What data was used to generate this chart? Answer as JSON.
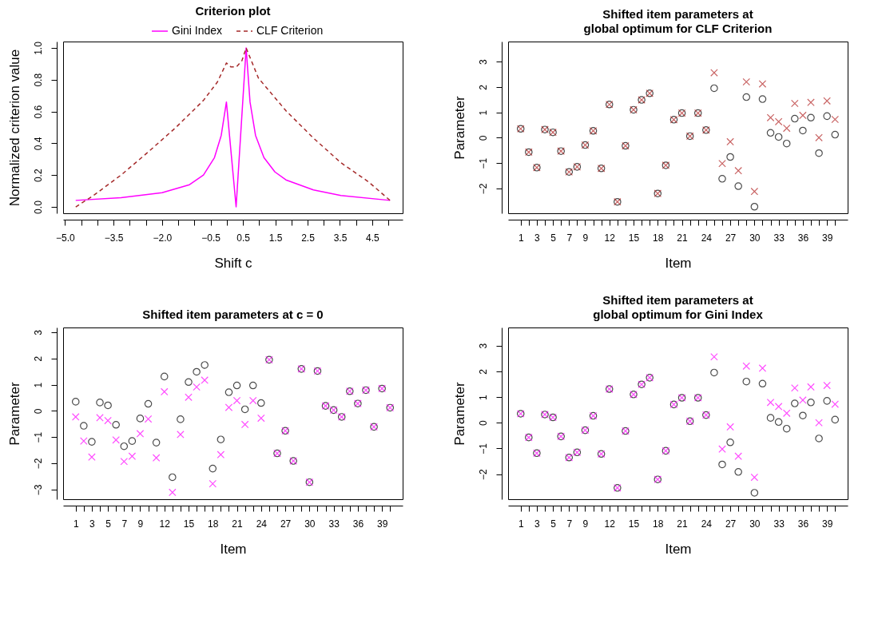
{
  "chart_data": [
    {
      "type": "line",
      "title": "Criterion plot",
      "xlabel": "Shift c",
      "ylabel": "Normalized criterion value",
      "legend": "top",
      "xlim": [
        -5.06,
        5.44
      ],
      "ylim": [
        -0.04,
        1.04
      ],
      "xticks": [
        {
          "value": -5,
          "label": "−5.0"
        },
        {
          "value": -4.5,
          "label": null
        },
        {
          "value": -4,
          "label": null
        },
        {
          "value": -3.5,
          "label": "−3.5"
        },
        {
          "value": -3,
          "label": null
        },
        {
          "value": -2.5,
          "label": null
        },
        {
          "value": -2,
          "label": "−2.0"
        },
        {
          "value": -1.5,
          "label": null
        },
        {
          "value": -1,
          "label": null
        },
        {
          "value": -0.5,
          "label": "−0.5"
        },
        {
          "value": 0,
          "label": null
        },
        {
          "value": 0.5,
          "label": "0.5"
        },
        {
          "value": 1,
          "label": null
        },
        {
          "value": 1.5,
          "label": "1.5"
        },
        {
          "value": 2,
          "label": null
        },
        {
          "value": 2.5,
          "label": "2.5"
        },
        {
          "value": 3,
          "label": null
        },
        {
          "value": 3.5,
          "label": "3.5"
        },
        {
          "value": 4,
          "label": null
        },
        {
          "value": 4.5,
          "label": "4.5"
        },
        {
          "value": 5,
          "label": null
        }
      ],
      "yticks": [
        {
          "value": 0,
          "label": "0.0"
        },
        {
          "value": 0.2,
          "label": "0.2"
        },
        {
          "value": 0.4,
          "label": "0.4"
        },
        {
          "value": 0.6,
          "label": "0.6"
        },
        {
          "value": 0.8,
          "label": "0.8"
        },
        {
          "value": 1,
          "label": "1.0"
        }
      ],
      "series": [
        {
          "name": "Gini Index",
          "color": "#ff00ff",
          "line_style": "solid",
          "x": [
            -4.67,
            -3.27,
            -2.0,
            -1.15,
            -0.72,
            -0.38,
            -0.17,
            -0.01,
            0.29,
            0.6,
            0.72,
            0.89,
            1.15,
            1.49,
            1.83,
            2.68,
            3.53,
            5.05
          ],
          "values": [
            0.041,
            0.058,
            0.089,
            0.14,
            0.2,
            0.31,
            0.45,
            0.66,
            0,
            1.0,
            0.66,
            0.45,
            0.31,
            0.22,
            0.17,
            0.107,
            0.072,
            0.041
          ]
        },
        {
          "name": "CLF Criterion",
          "color": "#a52a2a",
          "line_style": "dashed",
          "x": [
            -4.67,
            -4.12,
            -3.27,
            -2.42,
            -1.57,
            -0.72,
            -0.29,
            -0.01,
            0.13,
            0.3,
            0.47,
            0.6,
            0.98,
            1.83,
            2.68,
            3.53,
            4.38,
            5.05
          ],
          "values": [
            0,
            0.072,
            0.2,
            0.347,
            0.5,
            0.67,
            0.785,
            0.905,
            0.88,
            0.88,
            0.92,
            1.0,
            0.81,
            0.605,
            0.433,
            0.278,
            0.158,
            0.041
          ]
        }
      ]
    },
    {
      "type": "scatter",
      "title": "Shifted item parameters at\nglobal optimum for CLF Criterion",
      "xlabel": "Item",
      "ylabel": "Parameter",
      "x": [
        1,
        2,
        3,
        4,
        5,
        6,
        7,
        8,
        9,
        10,
        11,
        12,
        13,
        14,
        15,
        16,
        17,
        18,
        19,
        20,
        21,
        22,
        23,
        24,
        25,
        26,
        27,
        28,
        29,
        30,
        31,
        32,
        33,
        34,
        35,
        36,
        37,
        38,
        39,
        40
      ],
      "xlim": [
        -0.56,
        41.56
      ],
      "ylim": [
        -2.98,
        3.79
      ],
      "xticks": [
        1,
        {
          "value": 2,
          "label": null
        },
        3,
        {
          "value": 4,
          "label": null
        },
        5,
        {
          "value": 6,
          "label": null
        },
        7,
        {
          "value": 8,
          "label": null
        },
        9,
        {
          "value": 10,
          "label": null
        },
        {
          "value": 11,
          "label": null
        },
        12,
        {
          "value": 13,
          "label": null
        },
        {
          "value": 14,
          "label": null
        },
        15,
        {
          "value": 16,
          "label": null
        },
        {
          "value": 17,
          "label": null
        },
        18,
        {
          "value": 19,
          "label": null
        },
        {
          "value": 20,
          "label": null
        },
        21,
        {
          "value": 22,
          "label": null
        },
        {
          "value": 23,
          "label": null
        },
        24,
        {
          "value": 25,
          "label": null
        },
        {
          "value": 26,
          "label": null
        },
        27,
        {
          "value": 28,
          "label": null
        },
        {
          "value": 29,
          "label": null
        },
        30,
        {
          "value": 31,
          "label": null
        },
        {
          "value": 32,
          "label": null
        },
        33,
        {
          "value": 34,
          "label": null
        },
        {
          "value": 35,
          "label": null
        },
        36,
        {
          "value": 37,
          "label": null
        },
        {
          "value": 38,
          "label": null
        },
        39,
        {
          "value": 40,
          "label": null
        }
      ],
      "yticks": [
        -2,
        -1,
        0,
        1,
        2,
        3
      ],
      "series": [
        {
          "color": "#000000",
          "marker": "circle",
          "values": [
            0.35,
            -0.57,
            -1.18,
            0.32,
            0.21,
            -0.53,
            -1.35,
            -1.15,
            -0.29,
            0.27,
            -1.21,
            1.31,
            -2.53,
            -0.32,
            1.1,
            1.49,
            1.75,
            -2.2,
            -1.09,
            0.71,
            0.97,
            0.06,
            0.97,
            0.3,
            1.95,
            -1.62,
            -0.76,
            -1.91,
            1.6,
            -2.72,
            1.52,
            0.19,
            0.03,
            -0.23,
            0.75,
            0.28,
            0.79,
            -0.61,
            0.85,
            0.12
          ]
        },
        {
          "color": "#b22222",
          "marker": "cross",
          "values": [
            0.35,
            -0.57,
            -1.18,
            0.32,
            0.21,
            -0.53,
            -1.35,
            -1.15,
            -0.29,
            0.27,
            -1.21,
            1.31,
            -2.53,
            -0.32,
            1.1,
            1.49,
            1.75,
            -2.2,
            -1.09,
            0.71,
            0.97,
            0.06,
            0.97,
            0.3,
            2.56,
            -1.02,
            -0.16,
            -1.3,
            2.2,
            -2.12,
            2.12,
            0.79,
            0.63,
            0.37,
            1.35,
            0.88,
            1.39,
            0.0,
            1.45,
            0.72
          ]
        }
      ]
    },
    {
      "type": "scatter",
      "title": "Shifted item parameters at c = 0",
      "xlabel": "Item",
      "ylabel": "Parameter",
      "x": [
        1,
        2,
        3,
        4,
        5,
        6,
        7,
        8,
        9,
        10,
        11,
        12,
        13,
        14,
        15,
        16,
        17,
        18,
        19,
        20,
        21,
        22,
        23,
        24,
        25,
        26,
        27,
        28,
        29,
        30,
        31,
        32,
        33,
        34,
        35,
        36,
        37,
        38,
        39,
        40
      ],
      "xlim": [
        -0.56,
        41.56
      ],
      "ylim": [
        -3.37,
        3.18
      ],
      "xticks": [
        1,
        {
          "value": 2,
          "label": null
        },
        3,
        {
          "value": 4,
          "label": null
        },
        5,
        {
          "value": 6,
          "label": null
        },
        7,
        {
          "value": 8,
          "label": null
        },
        9,
        {
          "value": 10,
          "label": null
        },
        {
          "value": 11,
          "label": null
        },
        12,
        {
          "value": 13,
          "label": null
        },
        {
          "value": 14,
          "label": null
        },
        15,
        {
          "value": 16,
          "label": null
        },
        {
          "value": 17,
          "label": null
        },
        18,
        {
          "value": 19,
          "label": null
        },
        {
          "value": 20,
          "label": null
        },
        21,
        {
          "value": 22,
          "label": null
        },
        {
          "value": 23,
          "label": null
        },
        24,
        {
          "value": 25,
          "label": null
        },
        {
          "value": 26,
          "label": null
        },
        27,
        {
          "value": 28,
          "label": null
        },
        {
          "value": 29,
          "label": null
        },
        30,
        {
          "value": 31,
          "label": null
        },
        {
          "value": 32,
          "label": null
        },
        33,
        {
          "value": 34,
          "label": null
        },
        {
          "value": 35,
          "label": null
        },
        36,
        {
          "value": 37,
          "label": null
        },
        {
          "value": 38,
          "label": null
        },
        39,
        {
          "value": 40,
          "label": null
        }
      ],
      "yticks": [
        -3,
        -2,
        -1,
        0,
        1,
        2,
        3
      ],
      "series": [
        {
          "color": "#000000",
          "marker": "circle",
          "values": [
            0.35,
            -0.57,
            -1.18,
            0.32,
            0.21,
            -0.53,
            -1.35,
            -1.15,
            -0.29,
            0.27,
            -1.21,
            1.31,
            -2.53,
            -0.32,
            1.1,
            1.49,
            1.75,
            -2.2,
            -1.09,
            0.71,
            0.97,
            0.06,
            0.97,
            0.3,
            1.95,
            -1.62,
            -0.76,
            -1.91,
            1.6,
            -2.72,
            1.52,
            0.19,
            0.03,
            -0.23,
            0.75,
            0.28,
            0.79,
            -0.61,
            0.85,
            0.12
          ]
        },
        {
          "color": "#ff00ff",
          "marker": "cross",
          "values": [
            -0.23,
            -1.15,
            -1.76,
            -0.26,
            -0.37,
            -1.11,
            -1.93,
            -1.73,
            -0.87,
            -0.31,
            -1.79,
            0.73,
            -3.11,
            -0.9,
            0.52,
            0.91,
            1.17,
            -2.78,
            -1.67,
            0.13,
            0.39,
            -0.52,
            0.39,
            -0.28,
            1.95,
            -1.62,
            -0.76,
            -1.91,
            1.6,
            -2.72,
            1.52,
            0.19,
            0.03,
            -0.23,
            0.75,
            0.28,
            0.79,
            -0.61,
            0.85,
            0.12
          ]
        }
      ]
    },
    {
      "type": "scatter",
      "title": "Shifted item parameters at\nglobal optimum for Gini Index",
      "xlabel": "Item",
      "ylabel": "Parameter",
      "x": [
        1,
        2,
        3,
        4,
        5,
        6,
        7,
        8,
        9,
        10,
        11,
        12,
        13,
        14,
        15,
        16,
        17,
        18,
        19,
        20,
        21,
        22,
        23,
        24,
        25,
        26,
        27,
        28,
        29,
        30,
        31,
        32,
        33,
        34,
        35,
        36,
        37,
        38,
        39,
        40
      ],
      "xlim": [
        -0.56,
        41.56
      ],
      "ylim": [
        -2.97,
        3.7
      ],
      "xticks": [
        1,
        {
          "value": 2,
          "label": null
        },
        3,
        {
          "value": 4,
          "label": null
        },
        5,
        {
          "value": 6,
          "label": null
        },
        7,
        {
          "value": 8,
          "label": null
        },
        9,
        {
          "value": 10,
          "label": null
        },
        {
          "value": 11,
          "label": null
        },
        12,
        {
          "value": 13,
          "label": null
        },
        {
          "value": 14,
          "label": null
        },
        15,
        {
          "value": 16,
          "label": null
        },
        {
          "value": 17,
          "label": null
        },
        18,
        {
          "value": 19,
          "label": null
        },
        {
          "value": 20,
          "label": null
        },
        21,
        {
          "value": 22,
          "label": null
        },
        {
          "value": 23,
          "label": null
        },
        24,
        {
          "value": 25,
          "label": null
        },
        {
          "value": 26,
          "label": null
        },
        27,
        {
          "value": 28,
          "label": null
        },
        {
          "value": 29,
          "label": null
        },
        30,
        {
          "value": 31,
          "label": null
        },
        {
          "value": 32,
          "label": null
        },
        33,
        {
          "value": 34,
          "label": null
        },
        {
          "value": 35,
          "label": null
        },
        36,
        {
          "value": 37,
          "label": null
        },
        {
          "value": 38,
          "label": null
        },
        39,
        {
          "value": 40,
          "label": null
        }
      ],
      "yticks": [
        -2,
        -1,
        0,
        1,
        2,
        3
      ],
      "series": [
        {
          "color": "#000000",
          "marker": "circle",
          "values": [
            0.35,
            -0.57,
            -1.18,
            0.32,
            0.21,
            -0.53,
            -1.35,
            -1.15,
            -0.29,
            0.27,
            -1.21,
            1.31,
            -2.53,
            -0.32,
            1.1,
            1.49,
            1.75,
            -2.2,
            -1.09,
            0.71,
            0.97,
            0.06,
            0.97,
            0.3,
            1.95,
            -1.62,
            -0.76,
            -1.91,
            1.6,
            -2.72,
            1.52,
            0.19,
            0.03,
            -0.23,
            0.75,
            0.28,
            0.79,
            -0.61,
            0.85,
            0.12
          ]
        },
        {
          "color": "#ff00ff",
          "marker": "cross",
          "values": [
            0.35,
            -0.57,
            -1.18,
            0.32,
            0.21,
            -0.53,
            -1.35,
            -1.15,
            -0.29,
            0.27,
            -1.21,
            1.31,
            -2.53,
            -0.32,
            1.1,
            1.49,
            1.75,
            -2.2,
            -1.09,
            0.71,
            0.97,
            0.06,
            0.97,
            0.3,
            2.56,
            -1.02,
            -0.16,
            -1.3,
            2.2,
            -2.12,
            2.12,
            0.79,
            0.63,
            0.37,
            1.35,
            0.88,
            1.39,
            0.0,
            1.45,
            0.72
          ]
        }
      ]
    }
  ]
}
